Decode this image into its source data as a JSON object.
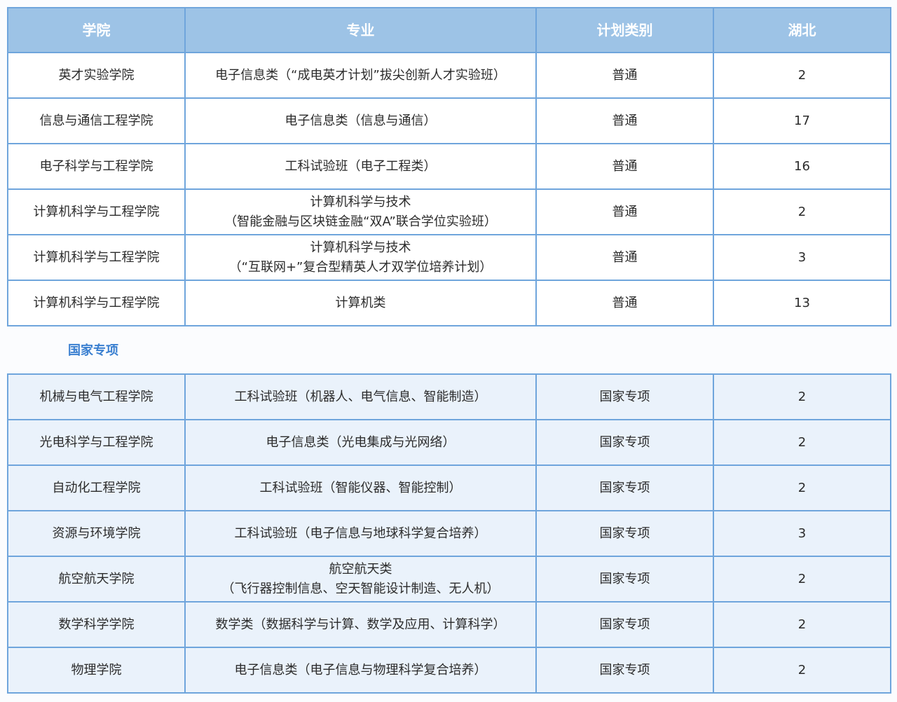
{
  "headers": [
    "学院",
    "专业",
    "计划类别",
    "湖北"
  ],
  "general_rows": [
    {
      "college": "英才实验学院",
      "major": [
        "电子信息类（“成电英才计划”拔尖创新人才实验班）"
      ],
      "plan": "普通",
      "hubei": "2"
    },
    {
      "college": "信息与通信工程学院",
      "major": [
        "电子信息类（信息与通信）"
      ],
      "plan": "普通",
      "hubei": "17"
    },
    {
      "college": "电子科学与工程学院",
      "major": [
        "工科试验班（电子工程类）"
      ],
      "plan": "普通",
      "hubei": "16"
    },
    {
      "college": "计算机科学与工程学院",
      "major": [
        "计算机科学与技术",
        "（智能金融与区块链金融“双A”联合学位实验班）"
      ],
      "plan": "普通",
      "hubei": "2"
    },
    {
      "college": "计算机科学与工程学院",
      "major": [
        "计算机科学与技术",
        "（“互联网+”复合型精英人才双学位培养计划）"
      ],
      "plan": "普通",
      "hubei": "3"
    },
    {
      "college": "计算机科学与工程学院",
      "major": [
        "计算机类"
      ],
      "plan": "普通",
      "hubei": "13"
    }
  ],
  "section_title": "国家专项",
  "special_rows": [
    {
      "college": "机械与电气工程学院",
      "major": [
        "工科试验班（机器人、电气信息、智能制造）"
      ],
      "plan": "国家专项",
      "hubei": "2"
    },
    {
      "college": "光电科学与工程学院",
      "major": [
        "电子信息类（光电集成与光网络）"
      ],
      "plan": "国家专项",
      "hubei": "2"
    },
    {
      "college": "自动化工程学院",
      "major": [
        "工科试验班（智能仪器、智能控制）"
      ],
      "plan": "国家专项",
      "hubei": "2"
    },
    {
      "college": "资源与环境学院",
      "major": [
        "工科试验班（电子信息与地球科学复合培养）"
      ],
      "plan": "国家专项",
      "hubei": "3"
    },
    {
      "college": "航空航天学院",
      "major": [
        "航空航天类",
        "（飞行器控制信息、空天智能设计制造、无人机）"
      ],
      "plan": "国家专项",
      "hubei": "2"
    },
    {
      "college": "数学科学学院",
      "major": [
        "数学类（数据科学与计算、数学及应用、计算科学）"
      ],
      "plan": "国家专项",
      "hubei": "2"
    },
    {
      "college": "物理学院",
      "major": [
        "电子信息类（电子信息与物理科学复合培养）"
      ],
      "plan": "国家专项",
      "hubei": "2"
    }
  ],
  "colors": {
    "header_bg": "#9dc3e6",
    "border": "#6fa5dc",
    "special_row_bg": "#eaf2fb",
    "section_title": "#3a7fd0"
  }
}
